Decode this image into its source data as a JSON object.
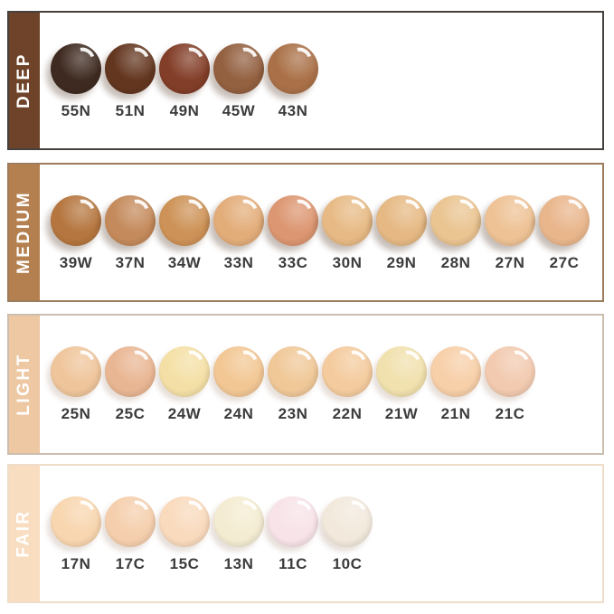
{
  "background": "#FFFFFF",
  "band_text_color": "#FFFFFF",
  "shade_code_text_color": "#3C3C3C",
  "rows": [
    {
      "id": "deep",
      "label": "DEEP",
      "band_color": "#6E4329",
      "border_color": "#46413D",
      "swatches": [
        {
          "code": "55N",
          "color": "#3E2A20"
        },
        {
          "code": "51N",
          "color": "#63361F"
        },
        {
          "code": "49N",
          "color": "#823E28"
        },
        {
          "code": "45W",
          "color": "#936040"
        },
        {
          "code": "43N",
          "color": "#AA7148"
        }
      ]
    },
    {
      "id": "medium",
      "label": "MEDIUM",
      "band_color": "#B5804F",
      "border_color": "#9D7C5E",
      "swatches": [
        {
          "code": "39W",
          "color": "#B5763F"
        },
        {
          "code": "37N",
          "color": "#C48A5B"
        },
        {
          "code": "34W",
          "color": "#CD9257"
        },
        {
          "code": "33N",
          "color": "#E3AD7A"
        },
        {
          "code": "33C",
          "color": "#DC9671"
        },
        {
          "code": "30N",
          "color": "#E7BA85"
        },
        {
          "code": "29N",
          "color": "#E6B984"
        },
        {
          "code": "28N",
          "color": "#EAC491"
        },
        {
          "code": "27N",
          "color": "#EEC295"
        },
        {
          "code": "27C",
          "color": "#E9B68C"
        }
      ]
    },
    {
      "id": "light",
      "label": "LIGHT",
      "band_color": "#EEC7A3",
      "border_color": "#CBBEAE",
      "swatches": [
        {
          "code": "25N",
          "color": "#EFC59B"
        },
        {
          "code": "25C",
          "color": "#E9B693"
        },
        {
          "code": "24W",
          "color": "#F4E0A6"
        },
        {
          "code": "24N",
          "color": "#F2C794"
        },
        {
          "code": "23N",
          "color": "#F0C898"
        },
        {
          "code": "22N",
          "color": "#F4CB9E"
        },
        {
          "code": "21W",
          "color": "#F1E1AE"
        },
        {
          "code": "21N",
          "color": "#F7CFA8"
        },
        {
          "code": "21C",
          "color": "#F2CAB0"
        }
      ]
    },
    {
      "id": "fair",
      "label": "FAIR",
      "band_color": "#F9DDC0",
      "border_color": "#EFDDCA",
      "swatches": [
        {
          "code": "17N",
          "color": "#F8D6AF"
        },
        {
          "code": "17C",
          "color": "#F5CFAD"
        },
        {
          "code": "15C",
          "color": "#F9DABD"
        },
        {
          "code": "13N",
          "color": "#F4ECD2"
        },
        {
          "code": "11C",
          "color": "#F7E3E8"
        },
        {
          "code": "10C",
          "color": "#F2E9DC"
        }
      ]
    }
  ],
  "chart_data": {
    "type": "table",
    "title": "",
    "categories": [
      "DEEP",
      "MEDIUM",
      "LIGHT",
      "FAIR"
    ],
    "series": [
      {
        "name": "DEEP",
        "values": [
          "55N",
          "51N",
          "49N",
          "45W",
          "43N"
        ]
      },
      {
        "name": "MEDIUM",
        "values": [
          "39W",
          "37N",
          "34W",
          "33N",
          "33C",
          "30N",
          "29N",
          "28N",
          "27N",
          "27C"
        ]
      },
      {
        "name": "LIGHT",
        "values": [
          "25N",
          "25C",
          "24W",
          "24N",
          "23N",
          "22N",
          "21W",
          "21N",
          "21C"
        ]
      },
      {
        "name": "FAIR",
        "values": [
          "17N",
          "17C",
          "15C",
          "13N",
          "11C",
          "10C"
        ]
      }
    ],
    "legend_position": "left-bands",
    "grid": false
  }
}
